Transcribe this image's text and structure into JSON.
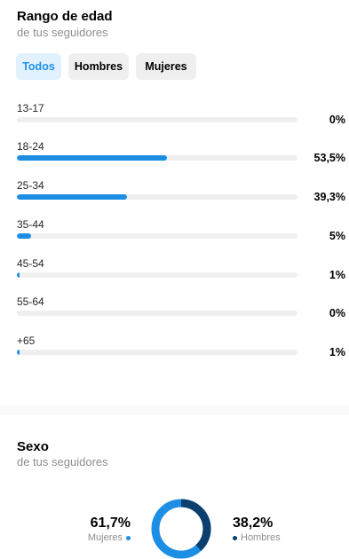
{
  "age": {
    "title": "Rango de edad",
    "subtitle": "de tus seguidores",
    "filters": [
      "Todos",
      "Hombres",
      "Mujeres"
    ],
    "active_filter": "Todos",
    "rows": [
      {
        "range": "13-17",
        "pct_text": "0%",
        "value": 0
      },
      {
        "range": "18-24",
        "pct_text": "53,5%",
        "value": 53.5
      },
      {
        "range": "25-34",
        "pct_text": "39,3%",
        "value": 39.3
      },
      {
        "range": "35-44",
        "pct_text": "5%",
        "value": 5
      },
      {
        "range": "45-54",
        "pct_text": "1%",
        "value": 1
      },
      {
        "range": "55-64",
        "pct_text": "0%",
        "value": 0
      },
      {
        "range": "+65",
        "pct_text": "1%",
        "value": 1
      }
    ]
  },
  "sex": {
    "title": "Sexo",
    "subtitle": "de tus seguidores",
    "women": {
      "pct_text": "61,7%",
      "label": "Mujeres",
      "value": 61.7
    },
    "men": {
      "pct_text": "38,2%",
      "label": "Hombres",
      "value": 38.2
    }
  },
  "colors": {
    "accent": "#1c8fe4",
    "men": "#0c3e6e",
    "track": "#efefef",
    "chip_active_bg": "#e1f1fd"
  }
}
